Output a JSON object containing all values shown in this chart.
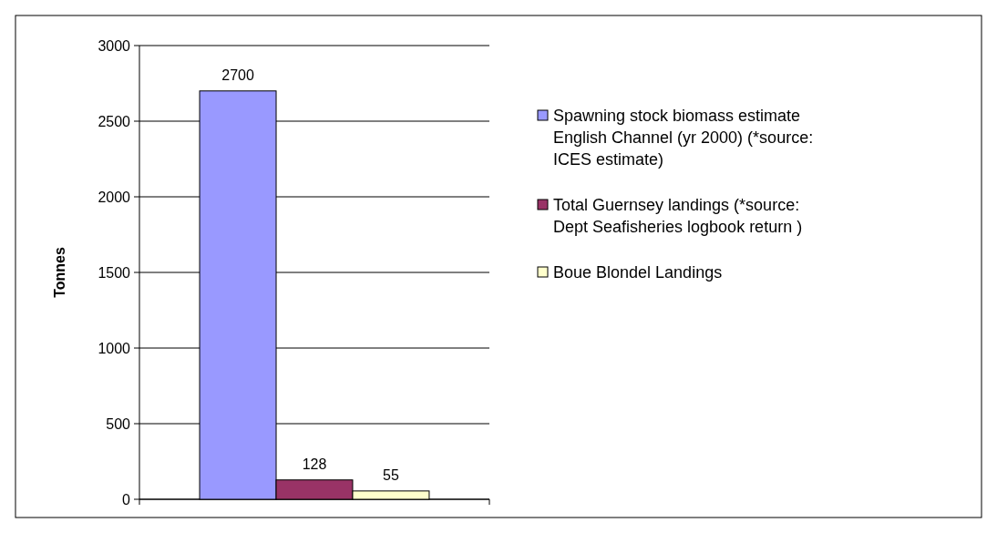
{
  "chart_data": {
    "type": "bar",
    "ylabel": "Tonnes",
    "categories": [
      null
    ],
    "series": [
      {
        "name": "Spawning stock biomass estimate English Channel (yr 2000) (*source: ICES estimate)",
        "color": "#9999ff",
        "values": [
          2700
        ]
      },
      {
        "name": "Total Guernsey landings (*source: Dept Seafisheries logbook return )",
        "color": "#993366",
        "values": [
          128
        ]
      },
      {
        "name": "Boue Blondel Landings",
        "color": "#ffffcc",
        "values": [
          55
        ]
      }
    ],
    "ylim": [
      0,
      3000
    ],
    "yticks": [
      0,
      500,
      1000,
      1500,
      2000,
      2500,
      3000
    ],
    "grid": "y",
    "legend": "right",
    "data_labels": true
  }
}
